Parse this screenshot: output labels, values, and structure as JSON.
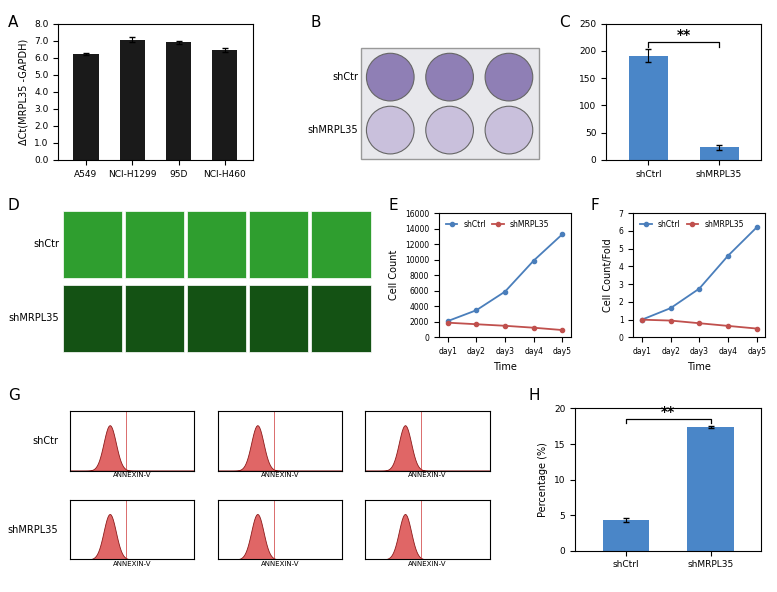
{
  "chart_data": [
    {
      "panel": "A",
      "type": "bar",
      "categories": [
        "A549",
        "NCI-H1299",
        "95D",
        "NCI-H460"
      ],
      "values": [
        6.2,
        7.05,
        6.9,
        6.45
      ],
      "errors": [
        0.05,
        0.15,
        0.08,
        0.12
      ],
      "color": "#1a1a1a",
      "y_label": "ΔCt(MRPL35 -GAPDH)",
      "ylim": [
        0,
        8
      ],
      "yticks": [
        {
          "value": 0,
          "label": "0.0"
        },
        {
          "value": 1,
          "label": "1.0"
        },
        {
          "value": 2,
          "label": "2.0"
        },
        {
          "value": 3,
          "label": "3.0"
        },
        {
          "value": 4,
          "label": "4.0"
        },
        {
          "value": 5,
          "label": "5.0"
        },
        {
          "value": 6,
          "label": "6.0"
        },
        {
          "value": 7,
          "label": "7.0"
        },
        {
          "value": 8,
          "label": "8.0"
        }
      ]
    },
    {
      "panel": "C",
      "type": "bar",
      "categories": [
        "shCtrl",
        "shMRPL35"
      ],
      "values": [
        191,
        23
      ],
      "errors": [
        12,
        5
      ],
      "color": "#4a86c8",
      "ylim": [
        0,
        250
      ],
      "yticks": [
        0,
        50,
        100,
        150,
        200,
        250
      ],
      "annotations": [
        {
          "text": "**"
        }
      ]
    },
    {
      "panel": "E",
      "type": "line",
      "categories": [
        "day1",
        "day2",
        "day3",
        "day4",
        "day5"
      ],
      "series": [
        {
          "name": "shCtrl",
          "color": "#4a7ebb",
          "values": [
            2100,
            3500,
            5900,
            9900,
            13300
          ]
        },
        {
          "name": "shMRPL35",
          "color": "#c0504d",
          "values": [
            1900,
            1700,
            1500,
            1250,
            950
          ]
        }
      ],
      "x_label": "Time",
      "y_label": "Cell Count",
      "ylim": [
        0,
        16000
      ],
      "yticks": [
        0,
        2000,
        4000,
        6000,
        8000,
        10000,
        12000,
        14000,
        16000
      ],
      "legend": "upper left",
      "marker": "o"
    },
    {
      "panel": "F",
      "type": "line",
      "categories": [
        "day1",
        "day2",
        "day3",
        "day4",
        "day5"
      ],
      "series": [
        {
          "name": "shCtrl",
          "color": "#4a7ebb",
          "values": [
            1.0,
            1.65,
            2.75,
            4.6,
            6.2
          ]
        },
        {
          "name": "shMRPL35",
          "color": "#c0504d",
          "values": [
            1.0,
            0.95,
            0.8,
            0.65,
            0.5
          ]
        }
      ],
      "x_label": "Time",
      "y_label": "Cell Count/Fold",
      "ylim": [
        0,
        7
      ],
      "yticks": [
        0,
        1,
        2,
        3,
        4,
        5,
        6,
        7
      ],
      "legend": "upper left",
      "marker": "o"
    },
    {
      "panel": "H",
      "type": "bar",
      "categories": [
        "shCtrl",
        "shMRPL35"
      ],
      "values": [
        4.3,
        17.4
      ],
      "errors": [
        0.3,
        0.1
      ],
      "color": "#4a86c8",
      "y_label": "Percentage (%)",
      "ylim": [
        0,
        20
      ],
      "yticks": [
        0,
        5,
        10,
        15,
        20
      ],
      "annotations": [
        {
          "text": "**"
        }
      ]
    }
  ],
  "images": [
    {
      "panel": "B",
      "type": "plate",
      "row_labels": [
        "shCtr",
        "shMRPL35"
      ]
    },
    {
      "panel": "D",
      "type": "fluorescence",
      "row_labels": [
        "shCtr",
        "shMRPL35"
      ]
    },
    {
      "panel": "G",
      "type": "flow",
      "row_labels": [
        "shCtr",
        "shMRPL35"
      ],
      "x_label": "ANNEXIN-V"
    }
  ]
}
